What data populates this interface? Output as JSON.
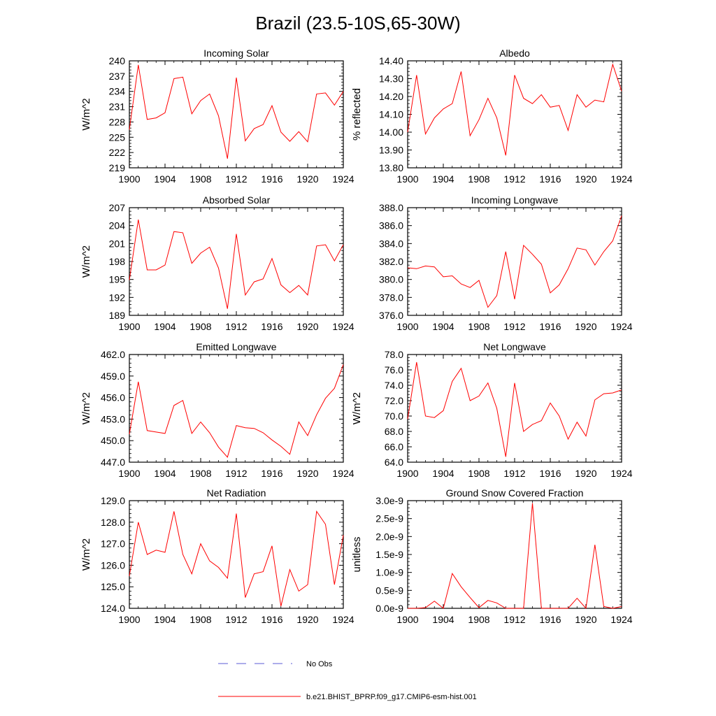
{
  "title": "Brazil (23.5-10S,65-30W)",
  "legend": {
    "obs_label": "No Obs",
    "obs_color": "#5b5bd6",
    "model_label": "b.e21.BHIST_BPRP.f09_g17.CMIP6-esm-hist.001",
    "model_color": "#ff0000"
  },
  "chart_data": [
    {
      "type": "line",
      "title": "Incoming Solar",
      "ylabel": "W/m^2",
      "ylim": [
        219,
        240
      ],
      "yticks": [
        "219",
        "222",
        "225",
        "228",
        "231",
        "234",
        "237",
        "240"
      ],
      "xticks": [
        "1900",
        "1904",
        "1908",
        "1912",
        "1916",
        "1920",
        "1924"
      ],
      "x": [
        1900,
        1901,
        1902,
        1903,
        1904,
        1905,
        1906,
        1907,
        1908,
        1909,
        1910,
        1911,
        1912,
        1913,
        1914,
        1915,
        1916,
        1917,
        1918,
        1919,
        1920,
        1921,
        1922,
        1923,
        1924
      ],
      "series": [
        {
          "values": [
            226.5,
            239.2,
            228.5,
            228.8,
            229.8,
            236.5,
            236.8,
            229.6,
            232.2,
            233.5,
            229.2,
            220.8,
            236.7,
            224.3,
            226.7,
            227.5,
            231.2,
            226.0,
            224.2,
            226.1,
            224.1,
            233.5,
            233.7,
            231.3,
            234.0
          ]
        }
      ]
    },
    {
      "type": "line",
      "title": "Albedo",
      "ylabel": "% reflected",
      "ylim": [
        13.8,
        14.4
      ],
      "yticks": [
        "13.80",
        "13.90",
        "14.00",
        "14.10",
        "14.20",
        "14.30",
        "14.40"
      ],
      "xticks": [
        "1900",
        "1904",
        "1908",
        "1912",
        "1916",
        "1920",
        "1924"
      ],
      "x": [
        1900,
        1901,
        1902,
        1903,
        1904,
        1905,
        1906,
        1907,
        1908,
        1909,
        1910,
        1911,
        1912,
        1913,
        1914,
        1915,
        1916,
        1917,
        1918,
        1919,
        1920,
        1921,
        1922,
        1923,
        1924
      ],
      "series": [
        {
          "values": [
            14.0,
            14.32,
            13.99,
            14.08,
            14.13,
            14.16,
            14.34,
            13.98,
            14.07,
            14.19,
            14.08,
            13.87,
            14.32,
            14.19,
            14.16,
            14.21,
            14.14,
            14.15,
            14.01,
            14.21,
            14.14,
            14.18,
            14.17,
            14.38,
            14.23
          ]
        }
      ]
    },
    {
      "type": "line",
      "title": "Absorbed Solar",
      "ylabel": "W/m^2",
      "ylim": [
        189,
        207
      ],
      "yticks": [
        "189",
        "192",
        "195",
        "198",
        "201",
        "204",
        "207"
      ],
      "xticks": [
        "1900",
        "1904",
        "1908",
        "1912",
        "1916",
        "1920",
        "1924"
      ],
      "x": [
        1900,
        1901,
        1902,
        1903,
        1904,
        1905,
        1906,
        1907,
        1908,
        1909,
        1910,
        1911,
        1912,
        1913,
        1914,
        1915,
        1916,
        1917,
        1918,
        1919,
        1920,
        1921,
        1922,
        1923,
        1924
      ],
      "series": [
        {
          "values": [
            194.9,
            205.0,
            196.6,
            196.6,
            197.4,
            203.0,
            202.8,
            197.7,
            199.4,
            200.4,
            196.9,
            190.1,
            202.6,
            192.4,
            194.6,
            195.1,
            198.5,
            194.1,
            192.8,
            194.0,
            192.4,
            200.6,
            200.8,
            198.1,
            200.8
          ]
        }
      ]
    },
    {
      "type": "line",
      "title": "Incoming Longwave",
      "ylabel": "",
      "ylim": [
        376,
        388
      ],
      "yticks": [
        "376.0",
        "378.0",
        "380.0",
        "382.0",
        "384.0",
        "386.0",
        "388.0"
      ],
      "xticks": [
        "1900",
        "1904",
        "1908",
        "1912",
        "1916",
        "1920",
        "1924"
      ],
      "x": [
        1900,
        1901,
        1902,
        1903,
        1904,
        1905,
        1906,
        1907,
        1908,
        1909,
        1910,
        1911,
        1912,
        1913,
        1914,
        1915,
        1916,
        1917,
        1918,
        1919,
        1920,
        1921,
        1922,
        1923,
        1924
      ],
      "series": [
        {
          "values": [
            381.3,
            381.2,
            381.5,
            381.4,
            380.3,
            380.4,
            379.5,
            379.1,
            379.9,
            376.9,
            378.2,
            383.1,
            377.8,
            383.8,
            382.8,
            381.7,
            378.5,
            379.4,
            381.2,
            383.5,
            383.3,
            381.6,
            383.1,
            384.3,
            387.1
          ]
        }
      ]
    },
    {
      "type": "line",
      "title": "Emitted Longwave",
      "ylabel": "W/m^2",
      "ylim": [
        447,
        462
      ],
      "yticks": [
        "447.0",
        "450.0",
        "453.0",
        "456.0",
        "459.0",
        "462.0"
      ],
      "xticks": [
        "1900",
        "1904",
        "1908",
        "1912",
        "1916",
        "1920",
        "1924"
      ],
      "x": [
        1900,
        1901,
        1902,
        1903,
        1904,
        1905,
        1906,
        1907,
        1908,
        1909,
        1910,
        1911,
        1912,
        1913,
        1914,
        1915,
        1916,
        1917,
        1918,
        1919,
        1920,
        1921,
        1922,
        1923,
        1924
      ],
      "series": [
        {
          "values": [
            450.9,
            458.2,
            451.4,
            451.2,
            451.0,
            454.9,
            455.6,
            451.0,
            452.6,
            451.1,
            449.1,
            447.7,
            452.1,
            451.8,
            451.7,
            451.1,
            450.1,
            449.2,
            448.1,
            452.6,
            450.7,
            453.6,
            455.9,
            457.3,
            460.6
          ]
        }
      ]
    },
    {
      "type": "line",
      "title": "Net Longwave",
      "ylabel": "W/m^2",
      "ylim": [
        64,
        78
      ],
      "yticks": [
        "64.0",
        "66.0",
        "68.0",
        "70.0",
        "72.0",
        "74.0",
        "76.0",
        "78.0"
      ],
      "xticks": [
        "1900",
        "1904",
        "1908",
        "1912",
        "1916",
        "1920",
        "1924"
      ],
      "x": [
        1900,
        1901,
        1902,
        1903,
        1904,
        1905,
        1906,
        1907,
        1908,
        1909,
        1910,
        1911,
        1912,
        1913,
        1914,
        1915,
        1916,
        1917,
        1918,
        1919,
        1920,
        1921,
        1922,
        1923,
        1924
      ],
      "series": [
        {
          "values": [
            69.6,
            77.0,
            70.0,
            69.8,
            70.7,
            74.5,
            76.2,
            72.0,
            72.6,
            74.3,
            71.0,
            64.7,
            74.3,
            68.0,
            68.9,
            69.4,
            71.7,
            70.0,
            67.0,
            69.2,
            67.4,
            72.1,
            72.9,
            73.0,
            73.4
          ]
        }
      ]
    },
    {
      "type": "line",
      "title": "Net Radiation",
      "ylabel": "W/m^2",
      "ylim": [
        124,
        129
      ],
      "yticks": [
        "124.0",
        "125.0",
        "126.0",
        "127.0",
        "128.0",
        "129.0"
      ],
      "xticks": [
        "1900",
        "1904",
        "1908",
        "1912",
        "1916",
        "1920",
        "1924"
      ],
      "x": [
        1900,
        1901,
        1902,
        1903,
        1904,
        1905,
        1906,
        1907,
        1908,
        1909,
        1910,
        1911,
        1912,
        1913,
        1914,
        1915,
        1916,
        1917,
        1918,
        1919,
        1920,
        1921,
        1922,
        1923,
        1924
      ],
      "series": [
        {
          "values": [
            125.5,
            128.0,
            126.5,
            126.7,
            126.6,
            128.5,
            126.5,
            125.6,
            127.0,
            126.2,
            125.9,
            125.4,
            128.4,
            124.5,
            125.6,
            125.7,
            126.9,
            124.1,
            125.8,
            124.8,
            125.1,
            128.5,
            127.9,
            125.1,
            127.4
          ]
        }
      ]
    },
    {
      "type": "line",
      "title": "Ground Snow Covered Fraction",
      "ylabel": "unitless",
      "ylim": [
        0,
        3e-09
      ],
      "yticks": [
        "0.0e-9",
        "0.5e-9",
        "1.0e-9",
        "1.5e-9",
        "2.0e-9",
        "2.5e-9",
        "3.0e-9"
      ],
      "xticks": [
        "1900",
        "1904",
        "1908",
        "1912",
        "1916",
        "1920",
        "1924"
      ],
      "x": [
        1900,
        1901,
        1902,
        1903,
        1904,
        1905,
        1906,
        1907,
        1908,
        1909,
        1910,
        1911,
        1912,
        1913,
        1914,
        1915,
        1916,
        1917,
        1918,
        1919,
        1920,
        1921,
        1922,
        1923,
        1924
      ],
      "series": [
        {
          "values": [
            0,
            0,
            2e-11,
            2e-10,
            0,
            9.7e-10,
            6e-10,
            3e-10,
            2e-11,
            2.2e-10,
            1.5e-10,
            0,
            0,
            0,
            2.93e-09,
            0,
            0,
            0,
            0,
            2.8e-10,
            0,
            1.77e-09,
            5e-11,
            0,
            5e-11
          ]
        }
      ]
    }
  ]
}
